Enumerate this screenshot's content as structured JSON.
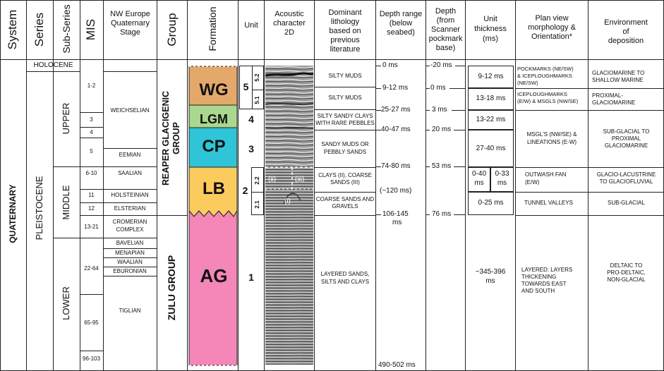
{
  "headers": {
    "system": "System",
    "series": "Series",
    "subseries": "Sub-Series",
    "mis": "MIS",
    "stage": [
      "NW Europe",
      "Quaternary",
      "Stage"
    ],
    "group": "Group",
    "formation": "Formation",
    "unit": "Unit",
    "acoustic": [
      "Acoustic",
      "character",
      "2D"
    ],
    "lithology": [
      "Dominant",
      "lithology",
      "based on",
      "previous",
      "literature"
    ],
    "depth_range": [
      "Depth range",
      "(below",
      "seabed)"
    ],
    "depth_scanner": [
      "Depth",
      "(from",
      "Scanner",
      "pockmark",
      "base)"
    ],
    "thickness": [
      "Unit",
      "thickness",
      "(ms)"
    ],
    "plan": [
      "Plan view",
      "morphology &",
      "Orientation*"
    ],
    "environment": [
      "Environment",
      "of",
      "deposition"
    ]
  },
  "system": "QUATERNARY",
  "series": {
    "holocene": "HOLOCENE",
    "pleistocene": "PLEISTOCENE"
  },
  "subseries": {
    "upper": "UPPER",
    "middle": "MIDDLE",
    "lower": "LOWER"
  },
  "mis": [
    "1-2",
    "3",
    "4",
    "5",
    "6-10",
    "11",
    "12",
    "13-21",
    "22-64",
    "65-95",
    "96-103"
  ],
  "stages": [
    "WEICHSELIAN",
    "EEMIAN",
    "SAALIAN",
    "HOLSTEINIAN",
    "ELSTERIAN",
    "CROMERIAN",
    "COMPLEX",
    "BAVELIAN",
    "MENAPIAN",
    "WAALIAN",
    "EBURONIAN",
    "TIGLIAN"
  ],
  "groups": {
    "reaper": [
      "REAPER GLACIGENIC",
      "GROUP"
    ],
    "zulu": "ZULU GROUP"
  },
  "formations": [
    {
      "code": "WG",
      "color": "#e4a96a"
    },
    {
      "code": "LGM",
      "color": "#a9d88e"
    },
    {
      "code": "CP",
      "color": "#30c4d8"
    },
    {
      "code": "LB",
      "color": "#fbcb5e"
    },
    {
      "code": "AG",
      "color": "#f486b8"
    }
  ],
  "units": [
    "5",
    "5.2",
    "5.1",
    "4",
    "3",
    "2",
    "2.2",
    "2.1",
    "1"
  ],
  "acoustic_labels": [
    "(ii)",
    "(iii)",
    "(i)"
  ],
  "lithology": [
    "SILTY MUDS",
    "SILTY MUDS",
    "SILTY SANDY CLAYS",
    "WITH RARE PEBBLES",
    "SANDY MUDS OR",
    "PEBBLY SANDS",
    "CLAYS (II), COARSE",
    "SANDS (III)",
    "COARSE SANDS AND",
    "GRAVELS",
    "LAYERED SANDS,",
    "SILTS AND CLAYS"
  ],
  "depth_range": [
    "0 ms",
    "9-12 ms",
    "25-27 ms",
    "40-47 ms",
    "74-80 ms",
    "(~120 ms)",
    "106-145",
    "ms",
    "490-502 ms"
  ],
  "depth_scanner": [
    "-20 ms",
    "0 ms",
    "3 ms",
    "20 ms",
    "53 ms",
    "76 ms"
  ],
  "thickness": [
    "9-12 ms",
    "13-18 ms",
    "13-22 ms",
    "27-40 ms",
    "0-40",
    "ms",
    "0-33",
    "ms",
    "0-25 ms",
    "~345-396",
    "ms"
  ],
  "plan": [
    "POCKMARKS (NE/SW)",
    "& ICEPLOUGHMARKS",
    "(NE/SW)",
    "ICEPLOUGHMARKS",
    "(E/W) & MSGLS (NW/SE)",
    "MSGL'S (NW/SE) &",
    "LINEATIONS (E-W)",
    "OUTWASH FAN",
    "(E/W)",
    "TUNNEL VALLEYS",
    "LAYERED: LAYERS",
    "THICKENING",
    "TOWARDS EAST",
    "AND SOUTH"
  ],
  "environment": [
    "GLACIOMARINE TO",
    "SHALLOW MARINE",
    "PROXIMAL-",
    "GLACIOMARINE",
    "SUB-GLACIAL TO",
    "PROXIMAL",
    "GLACIOMARINE",
    "GLACIO-LACUSTRINE",
    "TO GLACIOFLUVIAL",
    "SUB-GLACIAL",
    "DELTAIC TO",
    "PRO-DELTAIC,",
    "NON-GLACIAL"
  ]
}
